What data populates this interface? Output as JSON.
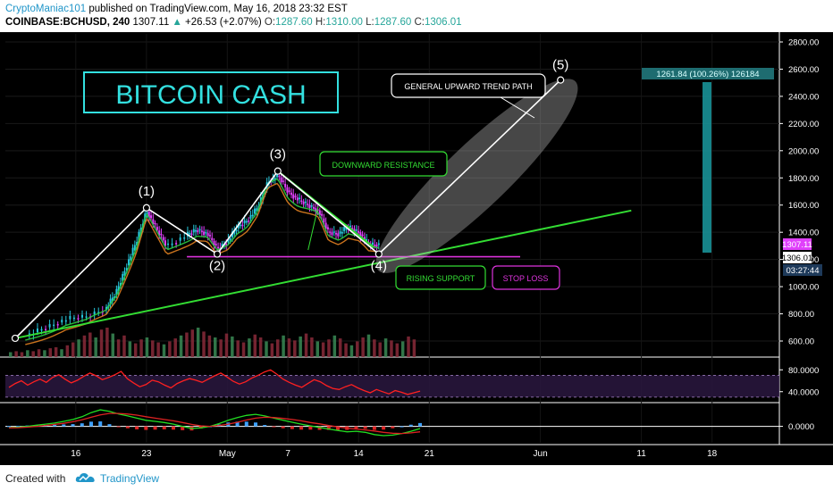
{
  "header": {
    "author": "CryptoManiac101",
    "published": " published on TradingView.com, May 16, 2018 23:32 EST",
    "symbol": "COINBASE:BCHUSD, 240",
    "price": "1307.11",
    "change": "+26.53 (+2.07%)",
    "o_label": "O:",
    "o_val": "1287.60",
    "h_label": "H:",
    "h_val": "1310.00",
    "l_label": "L:",
    "l_val": "1287.60",
    "c_label": "C:",
    "c_val": "1306.01"
  },
  "footer": {
    "created": "Created with",
    "brand": "TradingView"
  },
  "colors": {
    "background": "#000000",
    "candle_up": "#26c6da",
    "candle_down": "#e040fb",
    "annotation": "#ffffff",
    "trend_green": "#33dd33",
    "support_magenta": "#dd33dd",
    "rsi": "#ff2020",
    "title_cyan": "#33e0e0"
  },
  "chart_data": {
    "type": "line",
    "title": "BITCOIN CASH",
    "x_tick_labels": [
      "16",
      "23",
      "May",
      "7",
      "14",
      "21",
      "Jun",
      "11",
      "18"
    ],
    "y_tick_labels": [
      "2800.00",
      "2600.00",
      "2400.00",
      "2200.00",
      "2000.00",
      "1800.00",
      "1600.00",
      "1400.00",
      "1200.00",
      "1000.00",
      "800.00",
      "600.00"
    ],
    "ylim": [
      500,
      2850
    ],
    "price_path": [
      {
        "date": "Apr 11",
        "value": 640
      },
      {
        "date": "Apr 13",
        "value": 700
      },
      {
        "date": "Apr 15",
        "value": 760
      },
      {
        "date": "Apr 17",
        "value": 780
      },
      {
        "date": "Apr 19",
        "value": 840
      },
      {
        "date": "Apr 20",
        "value": 960
      },
      {
        "date": "Apr 21",
        "value": 1150
      },
      {
        "date": "Apr 22",
        "value": 1330
      },
      {
        "date": "Apr 23",
        "value": 1560
      },
      {
        "date": "Apr 24",
        "value": 1420
      },
      {
        "date": "Apr 25",
        "value": 1300
      },
      {
        "date": "Apr 27",
        "value": 1380
      },
      {
        "date": "Apr 28",
        "value": 1420
      },
      {
        "date": "Apr 29",
        "value": 1390
      },
      {
        "date": "Apr 30",
        "value": 1280
      },
      {
        "date": "May 1",
        "value": 1330
      },
      {
        "date": "May 2",
        "value": 1440
      },
      {
        "date": "May 3",
        "value": 1490
      },
      {
        "date": "May 4",
        "value": 1580
      },
      {
        "date": "May 5",
        "value": 1770
      },
      {
        "date": "May 6",
        "value": 1820
      },
      {
        "date": "May 7",
        "value": 1700
      },
      {
        "date": "May 8",
        "value": 1640
      },
      {
        "date": "May 9",
        "value": 1600
      },
      {
        "date": "May 10",
        "value": 1560
      },
      {
        "date": "May 11",
        "value": 1400
      },
      {
        "date": "May 12",
        "value": 1390
      },
      {
        "date": "May 13",
        "value": 1440
      },
      {
        "date": "May 14",
        "value": 1400
      },
      {
        "date": "May 15",
        "value": 1310
      },
      {
        "date": "May 16",
        "value": 1307
      }
    ],
    "wave_points": [
      {
        "label": "(1)",
        "date": "Apr 23",
        "value": 1580
      },
      {
        "label": "(2)",
        "date": "Apr 30",
        "value": 1240
      },
      {
        "label": "(3)",
        "date": "May 6",
        "value": 1850
      },
      {
        "label": "(4)",
        "date": "May 16",
        "value": 1240
      },
      {
        "label": "(5)",
        "date": "Jun 3",
        "value": 2520
      }
    ],
    "wave_start": {
      "date": "Apr 10",
      "value": 620
    },
    "annotations": {
      "upward_path": "GENERAL UPWARD TREND PATH",
      "resistance": "DOWNWARD RESISTANCE",
      "support": "RISING SUPPORT",
      "stop_loss": "STOP LOSS"
    },
    "measure_label": "1261.84 (100.26%) 126184",
    "price_labels": {
      "last": "1307.11",
      "close": "1306.01",
      "countdown": "03:27:44"
    },
    "rsi": {
      "y_tick_labels": [
        "80.0000",
        "40.0000"
      ],
      "ylim": [
        20,
        100
      ],
      "band": [
        30,
        70
      ],
      "values": [
        48,
        55,
        60,
        52,
        58,
        63,
        57,
        66,
        71,
        63,
        56,
        61,
        68,
        74,
        69,
        62,
        66,
        71,
        77,
        64,
        56,
        49,
        53,
        61,
        58,
        52,
        47,
        55,
        60,
        64,
        61,
        57,
        63,
        69,
        74,
        67,
        59,
        54,
        58,
        65,
        70,
        76,
        80,
        72,
        63,
        57,
        52,
        48,
        55,
        62,
        58,
        51,
        46,
        44,
        49,
        53,
        47,
        42,
        38,
        44,
        40,
        36,
        42,
        39,
        35,
        38,
        41
      ]
    },
    "macd": {
      "y_tick_labels": [
        "0.0000"
      ],
      "ylim": [
        -60,
        80
      ],
      "macd_values": [
        -5,
        -3,
        0,
        4,
        8,
        12,
        18,
        25,
        35,
        50,
        60,
        55,
        45,
        38,
        30,
        22,
        18,
        14,
        8,
        0,
        -8,
        -6,
        0,
        10,
        22,
        32,
        40,
        44,
        38,
        30,
        22,
        15,
        8,
        2,
        -4,
        -10,
        -15,
        -20,
        -18,
        -22,
        -30,
        -34,
        -32,
        -26,
        -18,
        -8
      ],
      "signal_values": [
        -6,
        -5,
        -3,
        0,
        3,
        7,
        11,
        17,
        24,
        33,
        42,
        47,
        47,
        45,
        41,
        35,
        30,
        25,
        20,
        14,
        7,
        2,
        0,
        3,
        8,
        15,
        23,
        30,
        33,
        32,
        29,
        25,
        20,
        14,
        9,
        3,
        -2,
        -7,
        -10,
        -13,
        -17,
        -22,
        -25,
        -26,
        -24,
        -20
      ]
    },
    "volume": [
      5,
      6,
      5,
      7,
      6,
      8,
      7,
      9,
      10,
      8,
      12,
      15,
      18,
      22,
      25,
      20,
      28,
      30,
      24,
      18,
      22,
      16,
      14,
      18,
      20,
      17,
      15,
      13,
      16,
      19,
      22,
      25,
      28,
      30,
      26,
      22,
      20,
      18,
      24,
      21,
      17,
      15,
      19,
      23,
      20,
      16,
      14,
      18,
      22,
      19,
      17,
      21,
      24,
      20,
      16,
      15,
      18,
      22,
      19,
      14,
      12,
      16,
      20,
      23,
      18,
      15,
      19,
      17,
      14,
      16,
      21,
      18
    ]
  }
}
